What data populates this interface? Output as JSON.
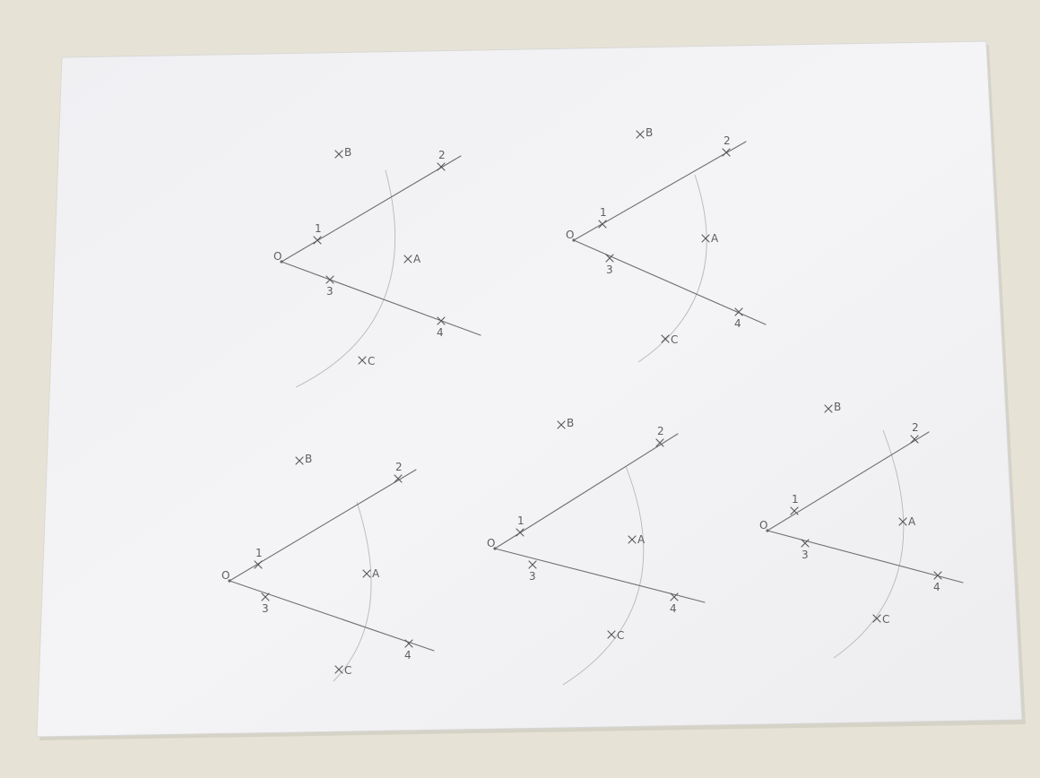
{
  "photo": {
    "subject": "pencil geometric construction exercises on white paper",
    "colors": {
      "table": "#e6e3d6",
      "paper": "#f3f3f5",
      "pencil": "#606060",
      "arc": "#b8b8b8"
    }
  },
  "figures": [
    {
      "labels": {
        "origin": "O",
        "p1": "1",
        "p2": "2",
        "p3": "3",
        "p4": "4",
        "a": "A",
        "b": "B",
        "c": "C"
      }
    },
    {
      "labels": {
        "origin": "O",
        "p1": "1",
        "p2": "2",
        "p3": "3",
        "p4": "4",
        "a": "A",
        "b": "B",
        "c": "C"
      }
    },
    {
      "labels": {
        "origin": "O",
        "p1": "1",
        "p2": "2",
        "p3": "3",
        "p4": "4",
        "a": "A",
        "b": "B",
        "c": "C"
      }
    },
    {
      "labels": {
        "origin": "O",
        "p1": "1",
        "p2": "2",
        "p3": "3",
        "p4": "4",
        "a": "A",
        "b": "B",
        "c": "C"
      }
    },
    {
      "labels": {
        "origin": "O",
        "p1": "1",
        "p2": "2",
        "p3": "3",
        "p4": "4",
        "a": "A",
        "b": "B",
        "c": "C"
      }
    }
  ]
}
